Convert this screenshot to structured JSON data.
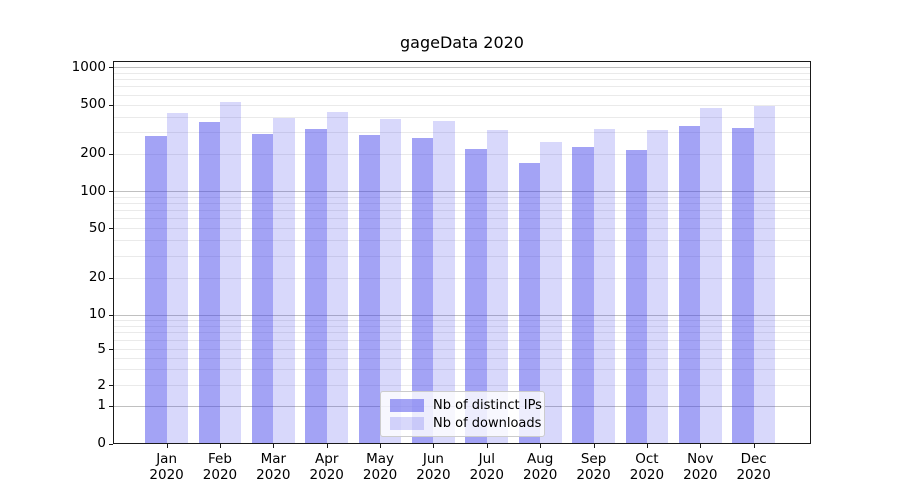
{
  "chart_data": {
    "type": "bar",
    "title": "gageData 2020",
    "categories": [
      "Jan 2020",
      "Feb 2020",
      "Mar 2020",
      "Apr 2020",
      "May 2020",
      "Jun 2020",
      "Jul 2020",
      "Aug 2020",
      "Sep 2020",
      "Oct 2020",
      "Nov 2020",
      "Dec 2020"
    ],
    "series": [
      {
        "name": "Nb of distinct IPs",
        "color": "#3e3eeb7a",
        "values": [
          280,
          360,
          290,
          315,
          285,
          270,
          220,
          170,
          225,
          215,
          335,
          325
        ]
      },
      {
        "name": "Nb of downloads",
        "color": "#3e3eeb33",
        "values": [
          430,
          525,
          390,
          435,
          385,
          370,
          310,
          250,
          320,
          310,
          470,
          490
        ]
      }
    ],
    "yscale": "symlog",
    "yticks": [
      0,
      1,
      2,
      5,
      10,
      20,
      50,
      100,
      200,
      500,
      1000
    ],
    "ylim": [
      0,
      1120
    ],
    "xlabel": "",
    "ylabel": "",
    "grid": "horizontal-major-and-minor",
    "legend_position": "lower-center-inside",
    "colors": {
      "major_grid": "#c0c0c0",
      "minor_grid": "#eaeaea",
      "spine": "#1a1a1a"
    }
  }
}
